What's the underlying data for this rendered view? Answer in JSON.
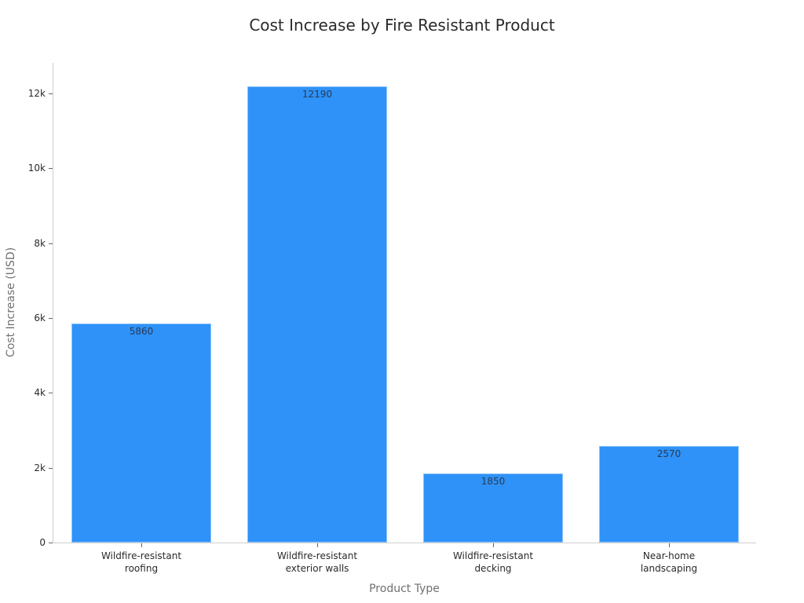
{
  "chart_data": {
    "type": "bar",
    "title": "Cost Increase by Fire Resistant Product",
    "xlabel": "Product Type",
    "ylabel": "Cost Increase (USD)",
    "categories": [
      [
        "Wildfire-resistant",
        "roofing"
      ],
      [
        "Wildfire-resistant",
        "exterior walls"
      ],
      [
        "Wildfire-resistant",
        "decking"
      ],
      [
        "Near-home",
        "landscaping"
      ]
    ],
    "values": [
      5860,
      12190,
      1850,
      2570
    ],
    "value_labels": [
      "5860",
      "12190",
      "1850",
      "2570"
    ],
    "ylim": [
      0,
      12800
    ],
    "yticks": [
      0,
      2000,
      4000,
      6000,
      8000,
      10000,
      12000
    ],
    "ytick_labels": [
      "0",
      "2k",
      "4k",
      "6k",
      "8k",
      "10k",
      "12k"
    ],
    "grid": false,
    "legend": null,
    "bar_color": "#2e92f8"
  }
}
